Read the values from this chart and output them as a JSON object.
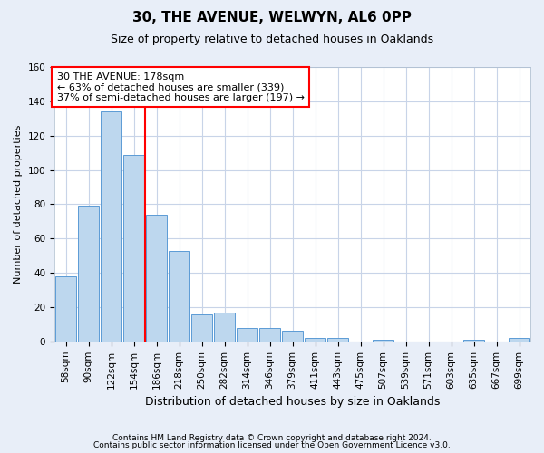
{
  "title1": "30, THE AVENUE, WELWYN, AL6 0PP",
  "title2": "Size of property relative to detached houses in Oaklands",
  "xlabel": "Distribution of detached houses by size in Oaklands",
  "ylabel": "Number of detached properties",
  "footer1": "Contains HM Land Registry data © Crown copyright and database right 2024.",
  "footer2": "Contains public sector information licensed under the Open Government Licence v3.0.",
  "bar_labels": [
    "58sqm",
    "90sqm",
    "122sqm",
    "154sqm",
    "186sqm",
    "218sqm",
    "250sqm",
    "282sqm",
    "314sqm",
    "346sqm",
    "379sqm",
    "411sqm",
    "443sqm",
    "475sqm",
    "507sqm",
    "539sqm",
    "571sqm",
    "603sqm",
    "635sqm",
    "667sqm",
    "699sqm"
  ],
  "bar_values": [
    38,
    79,
    134,
    109,
    74,
    53,
    16,
    17,
    8,
    8,
    6,
    2,
    2,
    0,
    1,
    0,
    0,
    0,
    1,
    0,
    2
  ],
  "bar_color": "#bdd7ee",
  "bar_edgecolor": "#5b9bd5",
  "vline_index": 4,
  "annotation_line1": "30 THE AVENUE: 178sqm",
  "annotation_line2": "← 63% of detached houses are smaller (339)",
  "annotation_line3": "37% of semi-detached houses are larger (197) →",
  "annotation_box_color": "white",
  "annotation_box_edgecolor": "red",
  "vline_color": "red",
  "ylim": [
    0,
    160
  ],
  "yticks": [
    0,
    20,
    40,
    60,
    80,
    100,
    120,
    140,
    160
  ],
  "grid_color": "#c8d4e8",
  "background_color": "#e8eef8",
  "plot_bg_color": "white",
  "title1_fontsize": 11,
  "title2_fontsize": 9,
  "ylabel_fontsize": 8,
  "xlabel_fontsize": 9,
  "tick_fontsize": 7.5,
  "annot_fontsize": 8,
  "footer_fontsize": 6.5
}
